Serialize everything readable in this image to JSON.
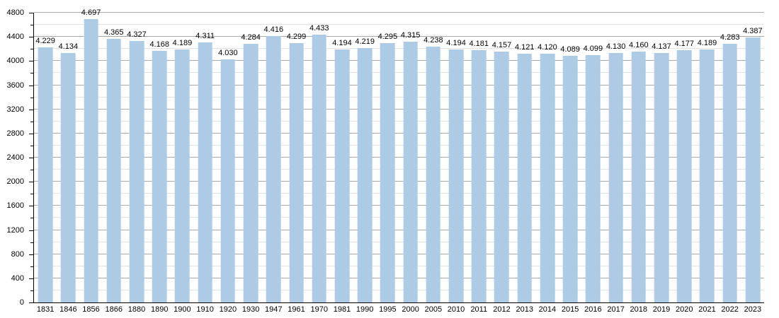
{
  "chart_data": {
    "type": "bar",
    "title": "",
    "xlabel": "",
    "ylabel": "",
    "categories": [
      "1831",
      "1846",
      "1856",
      "1866",
      "1880",
      "1890",
      "1900",
      "1910",
      "1920",
      "1930",
      "1947",
      "1961",
      "1970",
      "1981",
      "1990",
      "1995",
      "2000",
      "2005",
      "2010",
      "2011",
      "2012",
      "2013",
      "2014",
      "2015",
      "2016",
      "2017",
      "2018",
      "2019",
      "2020",
      "2021",
      "2022",
      "2023"
    ],
    "values": [
      4229,
      4134,
      4697,
      4365,
      4327,
      4168,
      4189,
      4311,
      4030,
      4284,
      4416,
      4299,
      4433,
      4194,
      4219,
      4295,
      4315,
      4238,
      4194,
      4181,
      4157,
      4121,
      4120,
      4089,
      4099,
      4130,
      4160,
      4137,
      4177,
      4189,
      4283,
      4387
    ],
    "value_labels": [
      "4.229",
      "4.134",
      "4.697",
      "4.365",
      "4.327",
      "4.168",
      "4.189",
      "4.311",
      "4.030",
      "4.284",
      "4.416",
      "4.299",
      "4.433",
      "4.194",
      "4.219",
      "4.295",
      "4.315",
      "4.238",
      "4.194",
      "4.181",
      "4.157",
      "4.121",
      "4.120",
      "4.089",
      "4.099",
      "4.130",
      "4.160",
      "4.137",
      "4.177",
      "4.189",
      "4.283",
      "4.387"
    ],
    "ylim": [
      0,
      4800
    ],
    "yticks": [
      "0",
      "400",
      "800",
      "1200",
      "1600",
      "2000",
      "2400",
      "2800",
      "3200",
      "3600",
      "4000",
      "4400",
      "4800"
    ],
    "ytick_step_major": 400,
    "ytick_step_minor": 200,
    "grid": "on",
    "legend": "none"
  },
  "colors": {
    "bar": "#aecbe6",
    "grid_major": "#a9a9a9",
    "grid_minor": "#e2e2e2",
    "axis": "#000000",
    "text": "#000000",
    "background": "#ffffff"
  }
}
